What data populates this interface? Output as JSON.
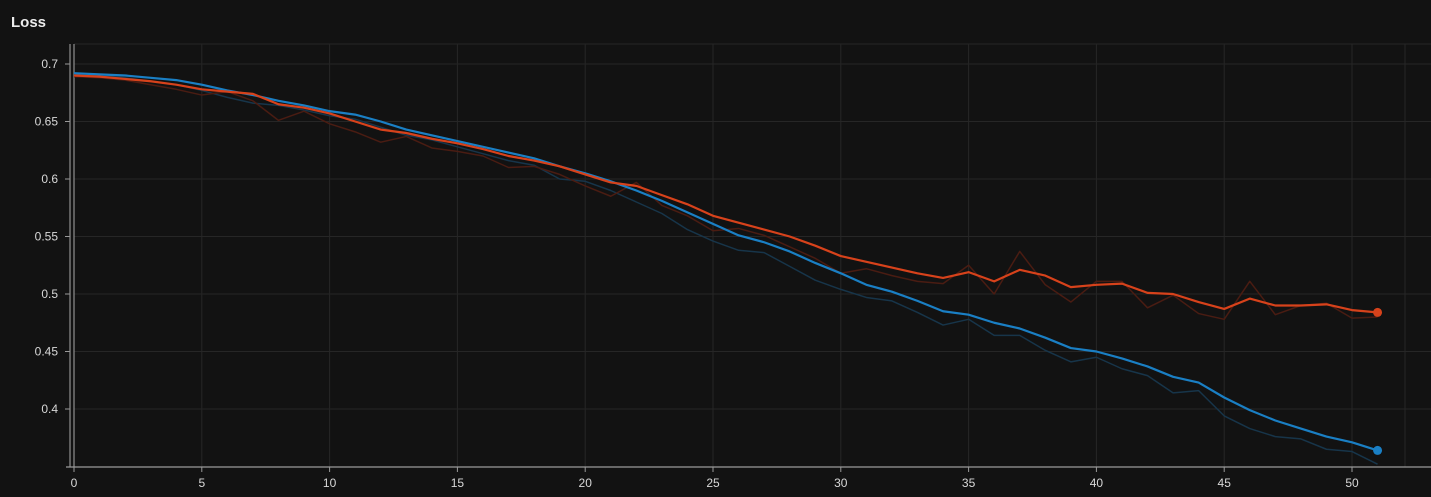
{
  "chart_data": {
    "type": "line",
    "title": "Loss",
    "xlabel": "",
    "ylabel": "",
    "xlim": [
      0,
      52
    ],
    "ylim": [
      0.35,
      0.72
    ],
    "x_ticks": [
      0,
      5,
      10,
      15,
      20,
      25,
      30,
      35,
      40,
      45,
      50
    ],
    "y_ticks": [
      0.4,
      0.45,
      0.5,
      0.55,
      0.6,
      0.65,
      0.7
    ],
    "y_tick_labels": [
      "0.4",
      "0.45",
      "0.5",
      "0.55",
      "0.6",
      "0.65",
      "0.7"
    ],
    "grid": true,
    "legend": "none",
    "x": [
      0,
      1,
      2,
      3,
      4,
      5,
      6,
      7,
      8,
      9,
      10,
      11,
      12,
      13,
      14,
      15,
      16,
      17,
      18,
      19,
      20,
      21,
      22,
      23,
      24,
      25,
      26,
      27,
      28,
      29,
      30,
      31,
      32,
      33,
      34,
      35,
      36,
      37,
      38,
      39,
      40,
      41,
      42,
      43,
      44,
      45,
      46,
      47,
      48,
      49,
      50,
      51
    ],
    "series": [
      {
        "color": "#1a7fc4",
        "raw_color": "#17354a",
        "smoothed": [
          0.692,
          0.691,
          0.69,
          0.688,
          0.686,
          0.682,
          0.677,
          0.673,
          0.668,
          0.664,
          0.659,
          0.656,
          0.65,
          0.643,
          0.638,
          0.633,
          0.628,
          0.623,
          0.618,
          0.611,
          0.605,
          0.598,
          0.59,
          0.581,
          0.571,
          0.561,
          0.551,
          0.545,
          0.537,
          0.527,
          0.518,
          0.508,
          0.502,
          0.494,
          0.485,
          0.482,
          0.475,
          0.47,
          0.462,
          0.453,
          0.45,
          0.444,
          0.437,
          0.428,
          0.423,
          0.41,
          0.399,
          0.39,
          0.383,
          0.376,
          0.371,
          0.364
        ],
        "raw": [
          0.691,
          0.69,
          0.688,
          0.685,
          0.682,
          0.677,
          0.671,
          0.666,
          0.664,
          0.66,
          0.655,
          0.652,
          0.645,
          0.638,
          0.634,
          0.628,
          0.622,
          0.616,
          0.612,
          0.6,
          0.598,
          0.59,
          0.58,
          0.57,
          0.556,
          0.546,
          0.538,
          0.536,
          0.524,
          0.512,
          0.504,
          0.497,
          0.494,
          0.484,
          0.473,
          0.478,
          0.464,
          0.464,
          0.451,
          0.441,
          0.445,
          0.435,
          0.429,
          0.414,
          0.416,
          0.394,
          0.383,
          0.376,
          0.374,
          0.365,
          0.363,
          0.352
        ]
      },
      {
        "color": "#d7421b",
        "raw_color": "#4a1c12",
        "smoothed": [
          0.69,
          0.689,
          0.687,
          0.685,
          0.682,
          0.678,
          0.676,
          0.674,
          0.665,
          0.662,
          0.657,
          0.65,
          0.643,
          0.64,
          0.635,
          0.631,
          0.626,
          0.62,
          0.616,
          0.611,
          0.604,
          0.597,
          0.594,
          0.586,
          0.578,
          0.568,
          0.562,
          0.556,
          0.55,
          0.542,
          0.533,
          0.528,
          0.523,
          0.518,
          0.514,
          0.519,
          0.511,
          0.521,
          0.516,
          0.506,
          0.508,
          0.509,
          0.501,
          0.5,
          0.493,
          0.487,
          0.496,
          0.49,
          0.49,
          0.491,
          0.486,
          0.484
        ],
        "raw": [
          0.689,
          0.688,
          0.686,
          0.682,
          0.678,
          0.673,
          0.676,
          0.668,
          0.651,
          0.659,
          0.648,
          0.641,
          0.632,
          0.637,
          0.627,
          0.624,
          0.62,
          0.61,
          0.611,
          0.604,
          0.594,
          0.585,
          0.597,
          0.577,
          0.568,
          0.555,
          0.557,
          0.551,
          0.541,
          0.531,
          0.518,
          0.522,
          0.516,
          0.511,
          0.509,
          0.525,
          0.5,
          0.537,
          0.508,
          0.493,
          0.511,
          0.511,
          0.488,
          0.499,
          0.483,
          0.478,
          0.511,
          0.482,
          0.49,
          0.492,
          0.479,
          0.48
        ]
      }
    ]
  }
}
